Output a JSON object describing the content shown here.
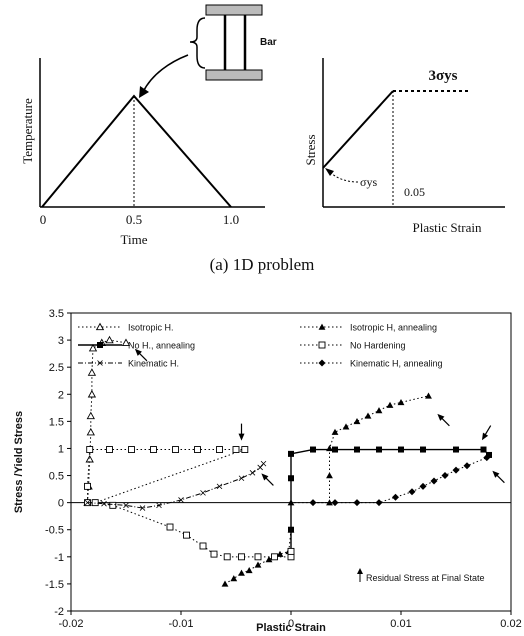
{
  "figure": {
    "caption": "(a)  1D  problem"
  },
  "schematic": {
    "temperature_plot": {
      "ylabel": "Temperature",
      "xlabel": "Time",
      "x_ticks": [
        "0",
        "0.5",
        "1.0"
      ]
    },
    "bar": {
      "label": "Bar"
    },
    "stress_plot": {
      "ylabel": "Stress",
      "xlabel": "Plastic Strain",
      "yield_label": "σys",
      "plateau_label": "3σys",
      "strain_label": "0.05"
    }
  },
  "chart_data": {
    "type": "line",
    "xlabel": "Plastic Strain",
    "ylabel": "Stress /Yield Stress",
    "xlim": [
      -0.02,
      0.02
    ],
    "ylim": [
      -2,
      3.5
    ],
    "x_ticks": [
      -0.02,
      -0.01,
      0,
      0.01,
      0.02
    ],
    "x_tick_labels": [
      "-0.02",
      "-0.01",
      "0",
      "0.01",
      "0.02"
    ],
    "y_ticks": [
      -2,
      -1.5,
      -1,
      -0.5,
      0,
      0.5,
      1,
      1.5,
      2,
      2.5,
      3,
      3.5
    ],
    "y_tick_labels": [
      "-2",
      "-1.5",
      "-1",
      "-0.5",
      "0",
      "0.5",
      "1",
      "1.5",
      "2",
      "2.5",
      "3",
      "3.5"
    ],
    "grid": false,
    "legend_position": "top",
    "annotation": "Residual Stress at Final State",
    "series": [
      {
        "name": "Isotropic H.",
        "marker": "triangle-open",
        "line": "dotted",
        "points": [
          [
            -0.0185,
            0
          ],
          [
            -0.0184,
            0.3
          ],
          [
            -0.0183,
            0.8
          ],
          [
            -0.0182,
            1.3
          ],
          [
            -0.0182,
            1.6
          ],
          [
            -0.0181,
            2.0
          ],
          [
            -0.0181,
            2.4
          ],
          [
            -0.018,
            2.85
          ],
          [
            -0.0172,
            2.95
          ],
          [
            -0.0165,
            3.0
          ],
          [
            -0.015,
            2.95
          ]
        ]
      },
      {
        "name": "Isotropic H, annealing",
        "marker": "triangle-filled",
        "line": "dotted",
        "points": [
          [
            -0.006,
            -1.5
          ],
          [
            -0.0052,
            -1.4
          ],
          [
            -0.0045,
            -1.3
          ],
          [
            -0.0038,
            -1.25
          ],
          [
            -0.003,
            -1.15
          ],
          [
            -0.002,
            -1.05
          ],
          [
            -0.001,
            -0.95
          ],
          [
            -0.0002,
            -0.9
          ],
          [
            0,
            -0.5
          ],
          [
            0,
            0
          ],
          [
            0.0035,
            0
          ],
          [
            0.0035,
            0.5
          ],
          [
            0.0035,
            1.0
          ],
          [
            0.004,
            1.3
          ],
          [
            0.005,
            1.4
          ],
          [
            0.006,
            1.5
          ],
          [
            0.007,
            1.6
          ],
          [
            0.008,
            1.7
          ],
          [
            0.009,
            1.8
          ],
          [
            0.01,
            1.85
          ],
          [
            0.0125,
            1.97
          ]
        ]
      },
      {
        "name": "No H., annealing",
        "marker": "square-filled",
        "line": "solid",
        "points": [
          [
            0,
            -0.9
          ],
          [
            0,
            -0.5
          ],
          [
            0,
            0.45
          ],
          [
            0,
            0.9
          ],
          [
            0.002,
            0.98
          ],
          [
            0.004,
            0.98
          ],
          [
            0.006,
            0.98
          ],
          [
            0.008,
            0.98
          ],
          [
            0.01,
            0.98
          ],
          [
            0.012,
            0.98
          ],
          [
            0.015,
            0.98
          ],
          [
            0.0175,
            0.98
          ],
          [
            0.018,
            0.88
          ]
        ]
      },
      {
        "name": "No Hardening",
        "marker": "square-open",
        "line": "dotted",
        "points": [
          [
            -0.0185,
            0
          ],
          [
            -0.0185,
            0.3
          ],
          [
            -0.0183,
            0.98
          ],
          [
            -0.0165,
            0.98
          ],
          [
            -0.0145,
            0.98
          ],
          [
            -0.0125,
            0.98
          ],
          [
            -0.0105,
            0.98
          ],
          [
            -0.0085,
            0.98
          ],
          [
            -0.0065,
            0.98
          ],
          [
            -0.005,
            0.98
          ],
          [
            -0.0042,
            0.98
          ],
          [
            -0.0178,
            0
          ],
          [
            -0.0162,
            -0.05
          ],
          [
            -0.011,
            -0.45
          ],
          [
            -0.0095,
            -0.6
          ],
          [
            -0.008,
            -0.8
          ],
          [
            -0.007,
            -0.95
          ],
          [
            -0.0058,
            -1.0
          ],
          [
            -0.0045,
            -1.0
          ],
          [
            -0.003,
            -1.0
          ],
          [
            -0.0015,
            -1.0
          ],
          [
            0,
            -1.0
          ],
          [
            0,
            -0.9
          ]
        ]
      },
      {
        "name": "Kinematic H.",
        "marker": "cross",
        "line": "dashdot",
        "points": [
          [
            -0.0185,
            0
          ],
          [
            -0.017,
            -0.02
          ],
          [
            -0.015,
            -0.05
          ],
          [
            -0.0135,
            -0.1
          ],
          [
            -0.012,
            -0.05
          ],
          [
            -0.01,
            0.05
          ],
          [
            -0.008,
            0.18
          ],
          [
            -0.0065,
            0.3
          ],
          [
            -0.0045,
            0.45
          ],
          [
            -0.0035,
            0.55
          ],
          [
            -0.0028,
            0.65
          ],
          [
            -0.0025,
            0.72
          ]
        ]
      },
      {
        "name": "Kinematic H, annealing",
        "marker": "diamond-filled",
        "line": "dotted",
        "points": [
          [
            0.002,
            0
          ],
          [
            0.004,
            0
          ],
          [
            0.006,
            0
          ],
          [
            0.008,
            0
          ],
          [
            0.0095,
            0.1
          ],
          [
            0.011,
            0.2
          ],
          [
            0.012,
            0.3
          ],
          [
            0.013,
            0.4
          ],
          [
            0.014,
            0.5
          ],
          [
            0.015,
            0.6
          ],
          [
            0.016,
            0.68
          ],
          [
            0.0178,
            0.83
          ]
        ]
      }
    ],
    "arrows": [
      {
        "x": -0.014,
        "y": 2.8,
        "dir": "up-left"
      },
      {
        "x": -0.0045,
        "y": 1.2,
        "dir": "down"
      },
      {
        "x": -0.0025,
        "y": 0.5,
        "dir": "up-left"
      },
      {
        "x": 0.0135,
        "y": 1.6,
        "dir": "up-left"
      },
      {
        "x": 0.0175,
        "y": 1.2,
        "dir": "down-left"
      },
      {
        "x": 0.0185,
        "y": 0.55,
        "dir": "up-left"
      }
    ]
  }
}
